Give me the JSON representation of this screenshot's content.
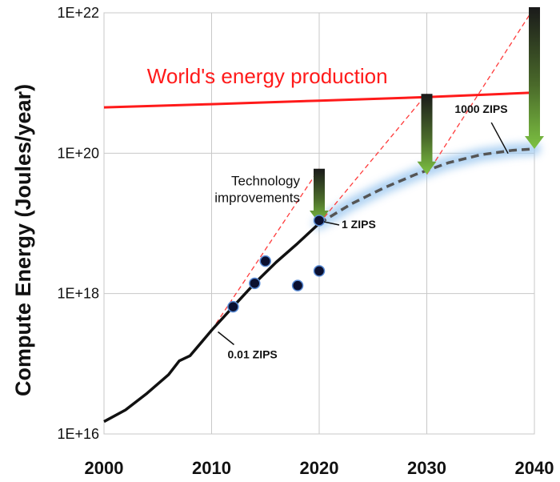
{
  "chart_data": {
    "type": "line",
    "title": "",
    "xlabel": "",
    "ylabel": "Compute Energy (Joules/year)",
    "xlim": [
      2000,
      2040
    ],
    "ylim": [
      1e+16,
      1e+22
    ],
    "y_scale": "log",
    "grid": true,
    "x_ticks": [
      "2000",
      "2010",
      "2020",
      "2030",
      "2040"
    ],
    "y_ticks": [
      "1E+16",
      "1E+18",
      "1E+20",
      "1E+22"
    ],
    "series": [
      {
        "name": "World's energy production",
        "color": "#ff1a1a",
        "x": [
          2000,
          2010,
          2020,
          2030,
          2040
        ],
        "y": [
          4.5e+20,
          5e+20,
          5.6e+20,
          6.3e+20,
          7.3e+20
        ]
      },
      {
        "name": "",
        "color": "#111111",
        "style": "solid",
        "x": [
          2000,
          2002,
          2004,
          2006,
          2007,
          2008,
          2010,
          2012,
          2014,
          2016,
          2018,
          2020
        ],
        "y": [
          1.5e+16,
          2.2e+16,
          3.8e+16,
          7e+16,
          1.1e+17,
          1.3e+17,
          3e+17,
          6.5e+17,
          1.4e+18,
          2.8e+18,
          5.2e+18,
          1e+19
        ]
      },
      {
        "name": "",
        "color": "#555555",
        "style": "dashed",
        "x": [
          2020,
          2023,
          2026,
          2029,
          2032,
          2035,
          2038,
          2040
        ],
        "y": [
          1e+19,
          1.9e+19,
          3.2e+19,
          5e+19,
          7.3e+19,
          9.5e+19,
          1.1e+20,
          1.15e+20
        ]
      }
    ],
    "points": {
      "x": [
        2012,
        2014,
        2015,
        2018,
        2020,
        2020
      ],
      "y": [
        6.5e+17,
        1.4e+18,
        2.9e+18,
        1.3e+18,
        1.1e+19,
        2.1e+18
      ]
    },
    "annotations": [
      {
        "text": "0.01 ZIPS",
        "x": 2010,
        "y": 3e+17
      },
      {
        "text": "1 ZIPS",
        "x": 2020,
        "y": 1e+19
      },
      {
        "text": "1000 ZIPS",
        "x": 2038,
        "y": 1.1e+20
      },
      {
        "text": "Technology improvements",
        "lines": [
          "Technology",
          "improvements"
        ]
      }
    ],
    "projection_lines": [
      {
        "x": [
          2010,
          2020
        ],
        "y": [
          3e+17,
          6e+19
        ]
      },
      {
        "x": [
          2020,
          2030
        ],
        "y": [
          1e+19,
          7e+20
        ]
      },
      {
        "x": [
          2030,
          2040
        ],
        "y": [
          5e+19,
          1.2e+22
        ]
      }
    ],
    "arrows": [
      {
        "x": 2020,
        "y_from": 6e+19,
        "y_to": 1e+19
      },
      {
        "x": 2030,
        "y_from": 7e+20,
        "y_to": 5e+19
      },
      {
        "x": 2040,
        "y_from": 1.2e+22,
        "y_to": 1.15e+20
      }
    ]
  }
}
